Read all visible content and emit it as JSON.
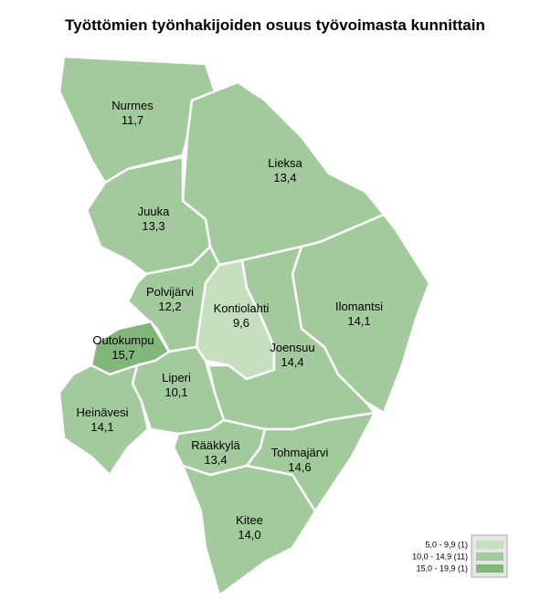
{
  "title": "Työttömien työnhakijoiden osuus työvoimasta kunnittain",
  "regions": [
    {
      "name": "Nurmes",
      "value": 11.7,
      "value_label": "11,7"
    },
    {
      "name": "Lieksa",
      "value": 13.4,
      "value_label": "13,4"
    },
    {
      "name": "Juuka",
      "value": 13.3,
      "value_label": "13,3"
    },
    {
      "name": "Ilomantsi",
      "value": 14.1,
      "value_label": "14,1"
    },
    {
      "name": "Polvijärvi",
      "value": 12.2,
      "value_label": "12,2"
    },
    {
      "name": "Kontiolahti",
      "value": 9.6,
      "value_label": "9,6"
    },
    {
      "name": "Joensuu",
      "value": 14.4,
      "value_label": "14,4"
    },
    {
      "name": "Outokumpu",
      "value": 15.7,
      "value_label": "15,7"
    },
    {
      "name": "Liperi",
      "value": 10.1,
      "value_label": "10,1"
    },
    {
      "name": "Heinävesi",
      "value": 14.1,
      "value_label": "14,1"
    },
    {
      "name": "Rääkkylä",
      "value": 13.4,
      "value_label": "13,4"
    },
    {
      "name": "Tohmajärvi",
      "value": 14.6,
      "value_label": "14,6"
    },
    {
      "name": "Kitee",
      "value": 14.0,
      "value_label": "14,0"
    }
  ],
  "legend": [
    {
      "label": "5,0 - 9,9 (1)",
      "range": [
        5.0,
        9.9
      ],
      "color": "#c6e0bf"
    },
    {
      "label": "10,0 - 14,9 (11)",
      "range": [
        10.0,
        14.9
      ],
      "color": "#a3ca9c"
    },
    {
      "label": "15,0 - 19,9 (1)",
      "range": [
        15.0,
        19.9
      ],
      "color": "#82b77b"
    }
  ]
}
